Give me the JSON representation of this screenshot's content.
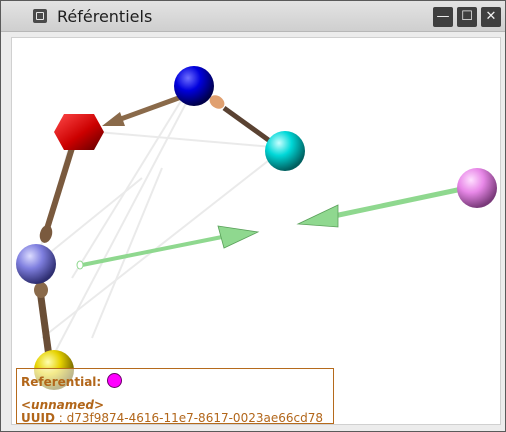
{
  "window": {
    "title": "Référentiels",
    "controls": {
      "minimize": "—",
      "maximize": "☐",
      "close": "✕"
    }
  },
  "scene": {
    "spheres": [
      {
        "id": "blue",
        "shape": "sphere",
        "color": "#0000dd"
      },
      {
        "id": "red",
        "shape": "hexagon",
        "color": "#cc0000"
      },
      {
        "id": "cyan",
        "shape": "sphere",
        "color": "#00d8d8"
      },
      {
        "id": "pink",
        "shape": "sphere",
        "color": "#e888e8"
      },
      {
        "id": "periwinkle",
        "shape": "sphere",
        "color": "#7f7fdf"
      },
      {
        "id": "yellow",
        "shape": "sphere",
        "color": "#e6d200"
      }
    ],
    "link_color": "#8a6a4a",
    "translation_color": "#8fd88f"
  },
  "info": {
    "referential_label": "Referential:",
    "swatch_color": "#ff00ff",
    "name": "<unnamed>",
    "uuid_label": "UUID",
    "uuid_sep": " : ",
    "uuid_value": "d73f9874-4616-11e7-8617-0023ae66cd78"
  }
}
